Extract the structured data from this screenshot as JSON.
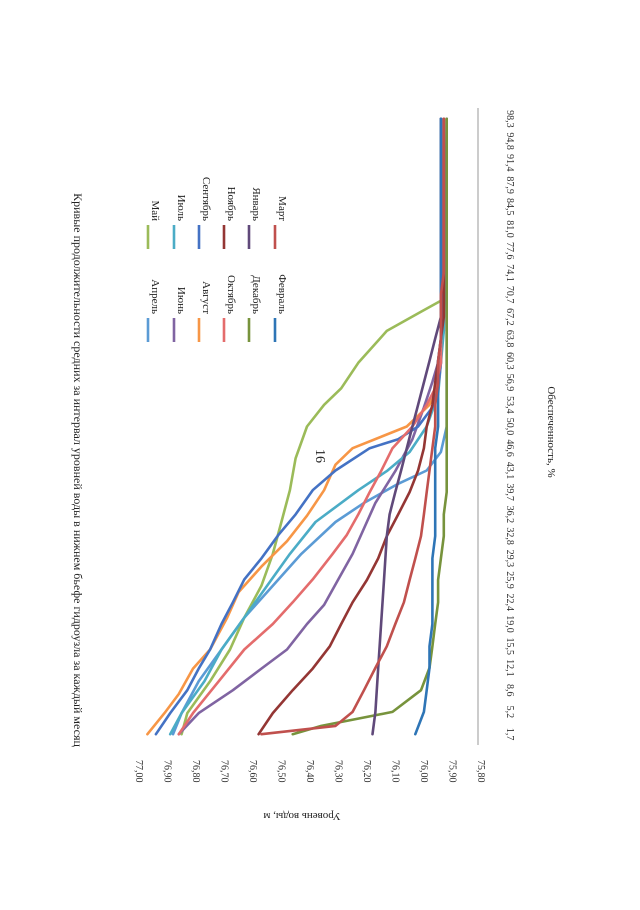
{
  "page_number": "16",
  "chart_data": {
    "type": "line",
    "title": "Кривые продолжительности средних за интервал уровней воды в нижнем бьефе гидроузла за каждый месяц",
    "xlabel": "Обеспеченность, %",
    "ylabel": "Уровень воды, м",
    "ylim": [
      75.8,
      77.0
    ],
    "xlim": [
      0,
      100
    ],
    "y_ticks": [
      "77,00",
      "76,90",
      "76,80",
      "76,70",
      "76,60",
      "76,50",
      "76,40",
      "76,30",
      "76,20",
      "76,10",
      "76,00",
      "75,90",
      "75,80"
    ],
    "x_ticks": [
      "1,7",
      "5,2",
      "8,6",
      "12,1",
      "15,5",
      "19,0",
      "22,4",
      "25,9",
      "29,3",
      "32,8",
      "36,2",
      "39,7",
      "43,1",
      "46,6",
      "50,0",
      "53,4",
      "56,9",
      "60,3",
      "63,8",
      "67,2",
      "70,7",
      "74,1",
      "77,6",
      "81,0",
      "84,5",
      "87,9",
      "91,4",
      "94,8",
      "98,3"
    ],
    "legend_position": "right",
    "grid": false,
    "series": [
      {
        "name": "Апрель",
        "color": "#5b9bd5",
        "x": [
          1.7,
          5,
          10,
          15,
          20,
          25,
          30,
          35,
          38,
          41,
          43.1,
          46,
          50,
          55,
          60,
          70,
          98.3
        ],
        "y": [
          76.87,
          76.84,
          76.78,
          76.7,
          76.62,
          76.52,
          76.42,
          76.3,
          76.2,
          76.08,
          75.98,
          75.93,
          75.91,
          75.91,
          75.91,
          75.91,
          75.91
        ]
      },
      {
        "name": "Май",
        "color": "#9bbb59",
        "x": [
          1.7,
          5,
          10,
          15,
          20,
          25,
          30,
          35,
          40,
          45,
          50,
          53.4,
          56,
          60,
          65,
          68,
          70,
          75,
          98.3
        ],
        "y": [
          76.84,
          76.82,
          76.74,
          76.67,
          76.62,
          76.56,
          76.52,
          76.49,
          76.46,
          76.44,
          76.4,
          76.34,
          76.28,
          76.22,
          76.12,
          76.0,
          75.92,
          75.91,
          75.91
        ]
      },
      {
        "name": "Июнь",
        "color": "#8064a2",
        "x": [
          1.7,
          5,
          8.6,
          12,
          15,
          19,
          22,
          26,
          30,
          34,
          38,
          43,
          48,
          53,
          57,
          60,
          65,
          98.3
        ],
        "y": [
          76.85,
          76.78,
          76.66,
          76.56,
          76.47,
          76.4,
          76.34,
          76.29,
          76.24,
          76.2,
          76.16,
          76.09,
          76.03,
          75.99,
          75.96,
          75.94,
          75.92,
          75.91
        ]
      },
      {
        "name": "Июль",
        "color": "#4bacc6",
        "x": [
          1.7,
          5,
          10,
          15,
          20,
          25,
          30,
          35,
          40,
          43,
          46,
          50,
          55,
          60,
          65,
          98.3
        ],
        "y": [
          76.88,
          76.84,
          76.76,
          76.7,
          76.62,
          76.54,
          76.46,
          76.37,
          76.22,
          76.12,
          76.04,
          75.98,
          75.94,
          75.93,
          75.92,
          75.92
        ]
      },
      {
        "name": "Август",
        "color": "#f79646",
        "x": [
          1.7,
          5,
          8,
          12,
          15,
          20,
          24,
          28,
          32,
          36,
          40,
          44,
          46.6,
          50,
          53.4,
          56,
          60,
          98.3
        ],
        "y": [
          76.96,
          76.9,
          76.85,
          76.8,
          76.74,
          76.68,
          76.64,
          76.56,
          76.47,
          76.4,
          76.34,
          76.3,
          76.24,
          76.05,
          75.97,
          75.94,
          75.93,
          75.92
        ]
      },
      {
        "name": "Сентябрь",
        "color": "#4472c4",
        "x": [
          1.7,
          5,
          8.6,
          12,
          15,
          19,
          22.4,
          26,
          29.3,
          33,
          36.2,
          40,
          43.1,
          46.6,
          48,
          50,
          53,
          56,
          60,
          98.3
        ],
        "y": [
          76.93,
          76.88,
          76.82,
          76.78,
          76.74,
          76.7,
          76.66,
          76.62,
          76.56,
          76.5,
          76.44,
          76.38,
          76.3,
          76.18,
          76.08,
          76.01,
          75.96,
          75.94,
          75.93,
          75.93
        ]
      },
      {
        "name": "Октябрь",
        "color": "#e46c6c",
        "x": [
          1.7,
          5,
          10,
          15,
          19,
          22.4,
          26,
          30,
          33,
          36.2,
          39.7,
          43,
          46.6,
          50,
          53.4,
          56,
          60,
          98.3
        ],
        "y": [
          76.85,
          76.8,
          76.71,
          76.62,
          76.52,
          76.45,
          76.38,
          76.31,
          76.26,
          76.22,
          76.18,
          76.14,
          76.1,
          76.03,
          75.98,
          75.95,
          75.93,
          75.93
        ]
      },
      {
        "name": "Ноябрь",
        "color": "#943634",
        "x": [
          1.7,
          5,
          8.6,
          12,
          15.5,
          19,
          22.4,
          25.9,
          29.3,
          32.8,
          36.2,
          39.7,
          43.1,
          46.6,
          50,
          53.4,
          56.9,
          60.3,
          63.8,
          67.2,
          98.3
        ],
        "y": [
          76.57,
          76.52,
          76.45,
          76.38,
          76.32,
          76.28,
          76.24,
          76.19,
          76.15,
          76.12,
          76.08,
          76.04,
          76.01,
          75.99,
          75.98,
          75.96,
          75.95,
          75.94,
          75.93,
          75.92,
          75.92
        ]
      },
      {
        "name": "Декабрь",
        "color": "#77933c",
        "x": [
          1.7,
          3,
          5.2,
          8.6,
          12.1,
          15.5,
          19,
          22.4,
          25.9,
          29.3,
          32.8,
          36.2,
          39.7,
          43,
          98.3
        ],
        "y": [
          76.45,
          76.35,
          76.1,
          76.0,
          75.97,
          75.96,
          75.95,
          75.94,
          75.94,
          75.93,
          75.92,
          75.92,
          75.91,
          75.91,
          75.91
        ]
      },
      {
        "name": "Январь",
        "color": "#60497a",
        "x": [
          1.7,
          5.2,
          12.1,
          19,
          25.9,
          32.8,
          36.2,
          39.7,
          43.1,
          46.6,
          50,
          53.4,
          56.9,
          60.3,
          63.8,
          67.2,
          98.3
        ],
        "y": [
          76.17,
          76.16,
          76.15,
          76.14,
          76.13,
          76.12,
          76.11,
          76.09,
          76.07,
          76.05,
          76.03,
          76.01,
          75.99,
          75.97,
          75.95,
          75.93,
          75.93
        ]
      },
      {
        "name": "Февраль",
        "color": "#2e75b6",
        "x": [
          1.7,
          5.2,
          8.6,
          12.1,
          15.5,
          19,
          22.4,
          25.9,
          29.3,
          32.8,
          36.2,
          39.7,
          43.1,
          46.6,
          50,
          53.4,
          56.9,
          60.3,
          63.8,
          67.2,
          98.3
        ],
        "y": [
          76.02,
          75.99,
          75.98,
          75.97,
          75.97,
          75.96,
          75.96,
          75.96,
          75.96,
          75.95,
          75.95,
          75.95,
          75.95,
          75.95,
          75.94,
          75.94,
          75.94,
          75.94,
          75.93,
          75.93,
          75.93
        ]
      },
      {
        "name": "Март",
        "color": "#c0504d",
        "x": [
          1.7,
          3,
          5.2,
          8.6,
          12.1,
          15.5,
          19,
          22.4,
          25.9,
          29.3,
          32.8,
          36.2,
          39.7,
          43.1,
          46.6,
          50,
          53.4,
          56.9,
          60.3,
          63.8,
          67.2,
          70.7,
          74.1,
          98.3
        ],
        "y": [
          76.56,
          76.3,
          76.24,
          76.2,
          76.16,
          76.12,
          76.09,
          76.06,
          76.04,
          76.02,
          76.0,
          75.99,
          75.98,
          75.97,
          75.96,
          75.95,
          75.95,
          75.94,
          75.94,
          75.93,
          75.93,
          75.93,
          75.92,
          75.92
        ]
      }
    ]
  }
}
